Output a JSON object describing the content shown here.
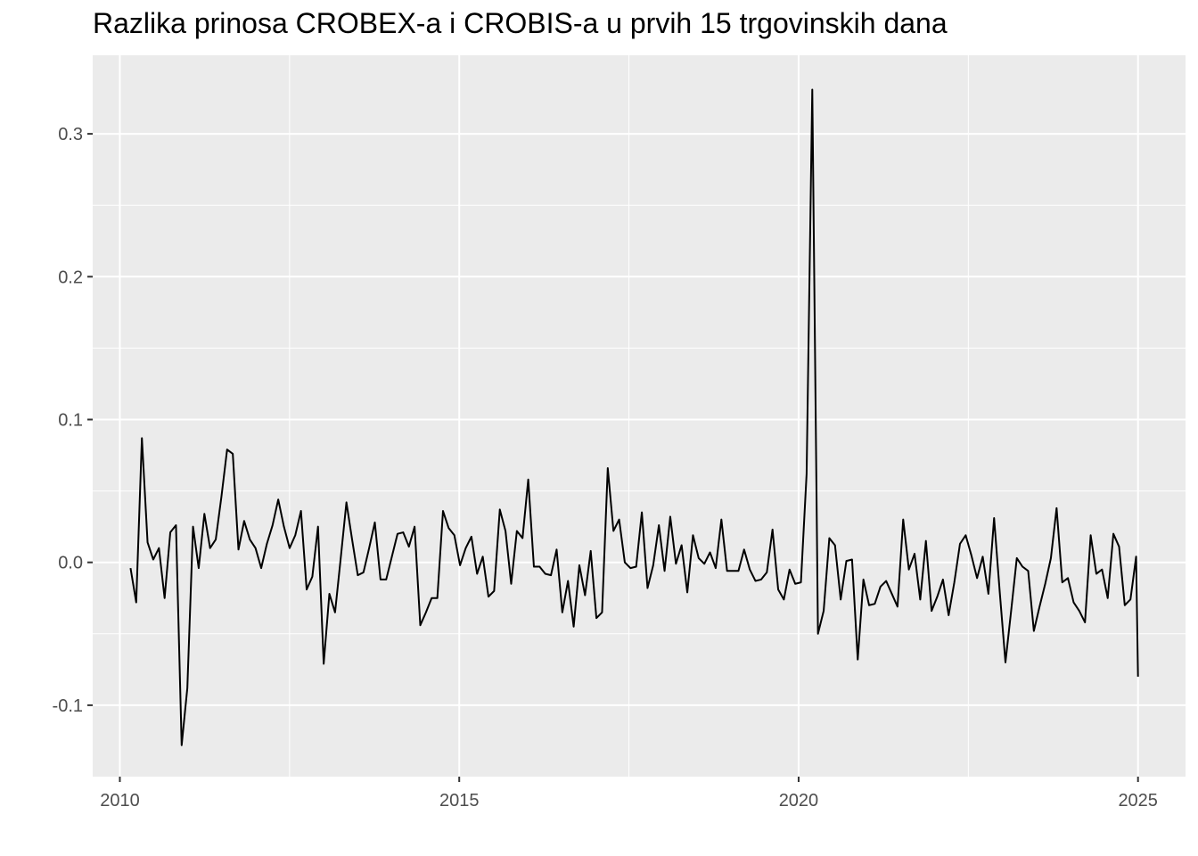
{
  "chart_data": {
    "type": "line",
    "title": "Razlika prinosa CROBEX-a i CROBIS-a u prvih 15 trgovinskih dana",
    "xlabel": "",
    "ylabel": "",
    "xlim": [
      2009.6,
      2025.7
    ],
    "ylim": [
      -0.15,
      0.355
    ],
    "x_ticks": [
      2010,
      2015,
      2020,
      2025
    ],
    "x_tick_labels": [
      "2010",
      "2015",
      "2020",
      "2025"
    ],
    "y_ticks": [
      -0.1,
      0.0,
      0.1,
      0.2,
      0.3
    ],
    "y_tick_labels": [
      "-0.1",
      "0.0",
      "0.1",
      "0.2",
      "0.3"
    ],
    "grid": true,
    "legend": "none",
    "colors": {
      "panel": "#ebebeb",
      "grid": "#ffffff",
      "line": "#000000",
      "text": "#4d4d4d"
    },
    "series": [
      {
        "x": [
          2010.1573,
          2010.241,
          2010.3247,
          2010.4084,
          2010.4921,
          2010.5758,
          2010.6595,
          2010.7432,
          2010.8269,
          2010.9106,
          2010.9943,
          2011.078,
          2011.1617,
          2011.2454,
          2011.3291,
          2011.4128,
          2011.4965,
          2011.5802,
          2011.6639,
          2011.7476,
          2011.8313,
          2011.915,
          2011.9987,
          2012.0824,
          2012.1661,
          2012.2498,
          2012.3335,
          2012.4172,
          2012.5009,
          2012.5846,
          2012.6683,
          2012.752,
          2012.8357,
          2012.9194,
          2013.0031,
          2013.0868,
          2013.1705,
          2013.2542,
          2013.3379,
          2013.4216,
          2013.5053,
          2013.589,
          2013.6727,
          2013.7564,
          2013.8401,
          2013.9238,
          2014.0075,
          2014.0912,
          2014.1749,
          2014.2586,
          2014.3423,
          2014.426,
          2014.5097,
          2014.5934,
          2014.6771,
          2014.7608,
          2014.8445,
          2014.9282,
          2015.0119,
          2015.0956,
          2015.1793,
          2015.263,
          2015.3467,
          2015.4304,
          2015.5141,
          2015.5978,
          2015.6815,
          2015.7652,
          2015.8489,
          2015.9326,
          2016.0163,
          2016.1,
          2016.1837,
          2016.2674,
          2016.3511,
          2016.4348,
          2016.5185,
          2016.6022,
          2016.6859,
          2016.7696,
          2016.8533,
          2016.937,
          2017.0207,
          2017.1044,
          2017.1881,
          2017.2718,
          2017.3555,
          2017.4392,
          2017.5229,
          2017.6066,
          2017.6903,
          2017.774,
          2017.8577,
          2017.9414,
          2018.0251,
          2018.1088,
          2018.1925,
          2018.2762,
          2018.3599,
          2018.4436,
          2018.5273,
          2018.611,
          2018.6947,
          2018.7784,
          2018.8621,
          2018.9458,
          2019.0295,
          2019.1132,
          2019.1969,
          2019.2806,
          2019.3643,
          2019.448,
          2019.5317,
          2019.6154,
          2019.6991,
          2019.7828,
          2019.8665,
          2019.9502,
          2020.0339,
          2020.1176,
          2020.2013,
          2020.285,
          2020.3687,
          2020.4524,
          2020.5361,
          2020.6198,
          2020.7035,
          2020.7872,
          2020.8709,
          2020.9546,
          2021.0383,
          2021.122,
          2021.2057,
          2021.2894,
          2021.3731,
          2021.4568,
          2021.5405,
          2021.6242,
          2021.7079,
          2021.7916,
          2021.8753,
          2021.959,
          2022.0427,
          2022.1264,
          2022.2101,
          2022.2938,
          2022.3775,
          2022.4612,
          2022.5449,
          2022.6286,
          2022.7123,
          2022.796,
          2022.8797,
          2022.9634,
          2023.0471,
          2023.1308,
          2023.2145,
          2023.2982,
          2023.3819,
          2023.4656,
          2023.5493,
          2023.633,
          2023.7167,
          2023.8004,
          2023.8841,
          2023.9678,
          2024.0515,
          2024.1352,
          2024.2189,
          2024.3026,
          2024.3863,
          2024.47,
          2024.5537,
          2024.6374,
          2024.7211,
          2024.8048,
          2024.8885,
          2024.9722,
          2025.0
        ],
        "values": [
          -0.004,
          -0.028,
          0.087,
          0.014,
          0.002,
          0.01,
          -0.025,
          0.021,
          0.026,
          -0.128,
          -0.088,
          0.025,
          -0.004,
          0.034,
          0.01,
          0.016,
          0.046,
          0.079,
          0.076,
          0.009,
          0.029,
          0.016,
          0.01,
          -0.004,
          0.013,
          0.026,
          0.044,
          0.025,
          0.01,
          0.019,
          0.036,
          -0.019,
          -0.01,
          0.025,
          -0.071,
          -0.022,
          -0.035,
          0.003,
          0.042,
          0.016,
          -0.009,
          -0.007,
          0.01,
          0.028,
          -0.012,
          -0.012,
          0.004,
          0.02,
          0.021,
          0.011,
          0.025,
          -0.044,
          -0.035,
          -0.025,
          -0.025,
          0.036,
          0.024,
          0.019,
          -0.002,
          0.01,
          0.018,
          -0.008,
          0.004,
          -0.024,
          -0.02,
          0.037,
          0.022,
          -0.015,
          0.022,
          0.017,
          0.058,
          -0.003,
          -0.003,
          -0.008,
          -0.009,
          0.009,
          -0.035,
          -0.013,
          -0.045,
          -0.002,
          -0.023,
          0.008,
          -0.039,
          -0.035,
          0.066,
          0.022,
          0.03,
          0.0,
          -0.004,
          -0.003,
          0.035,
          -0.018,
          -0.002,
          0.026,
          -0.006,
          0.032,
          -0.001,
          0.012,
          -0.021,
          0.019,
          0.003,
          -0.001,
          0.007,
          -0.004,
          0.03,
          -0.006,
          -0.006,
          -0.006,
          0.009,
          -0.005,
          -0.013,
          -0.012,
          -0.007,
          0.023,
          -0.019,
          -0.026,
          -0.005,
          -0.015,
          -0.014,
          0.062,
          0.331,
          -0.05,
          -0.034,
          0.017,
          0.012,
          -0.026,
          0.001,
          0.002,
          -0.068,
          -0.012,
          -0.03,
          -0.029,
          -0.017,
          -0.013,
          -0.022,
          -0.031,
          0.03,
          -0.005,
          0.006,
          -0.026,
          0.015,
          -0.034,
          -0.024,
          -0.012,
          -0.037,
          -0.014,
          0.013,
          0.019,
          0.005,
          -0.011,
          0.004,
          -0.022,
          0.031,
          -0.021,
          -0.07,
          -0.034,
          0.003,
          -0.003,
          -0.006,
          -0.048,
          -0.031,
          -0.015,
          0.003,
          0.038,
          -0.014,
          -0.011,
          -0.028,
          -0.034,
          -0.042,
          0.019,
          -0.008,
          -0.005,
          -0.025,
          0.02,
          0.011,
          -0.03,
          -0.026,
          0.004,
          -0.08
        ]
      }
    ]
  }
}
